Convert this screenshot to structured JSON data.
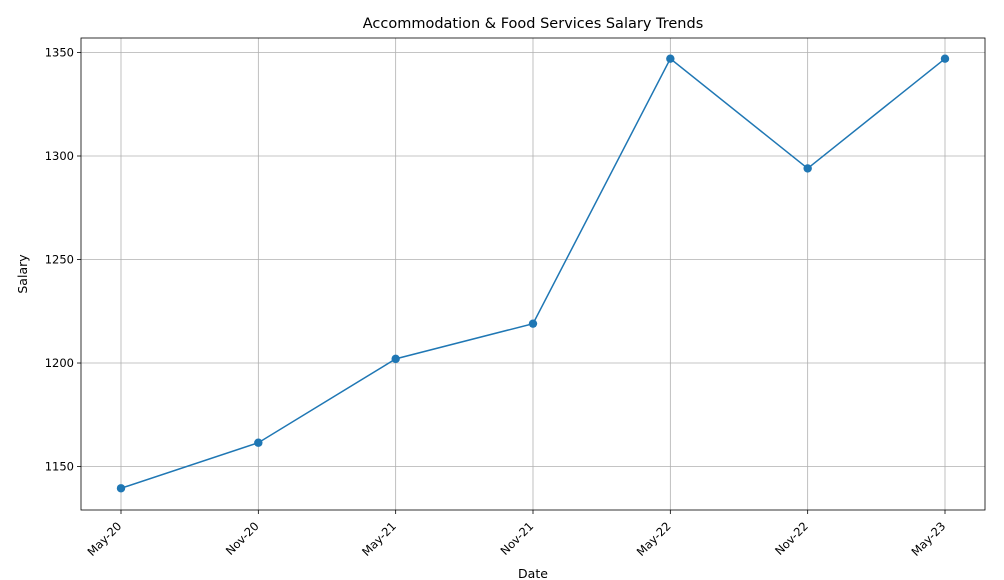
{
  "chart_data": {
    "type": "line",
    "title": "Accommodation & Food Services Salary Trends",
    "xlabel": "Date",
    "ylabel": "Salary",
    "categories": [
      "May-20",
      "Nov-20",
      "May-21",
      "Nov-21",
      "May-22",
      "Nov-22",
      "May-23"
    ],
    "series": [
      {
        "values": [
          1139.5,
          1161.5,
          1202,
          1219,
          1347,
          1294,
          1347
        ]
      }
    ],
    "ylim": [
      1129,
      1357
    ],
    "yticks": [
      1150,
      1200,
      1250,
      1300,
      1350
    ],
    "grid": true,
    "marker": "circle",
    "line_color": "#1f77b4"
  }
}
